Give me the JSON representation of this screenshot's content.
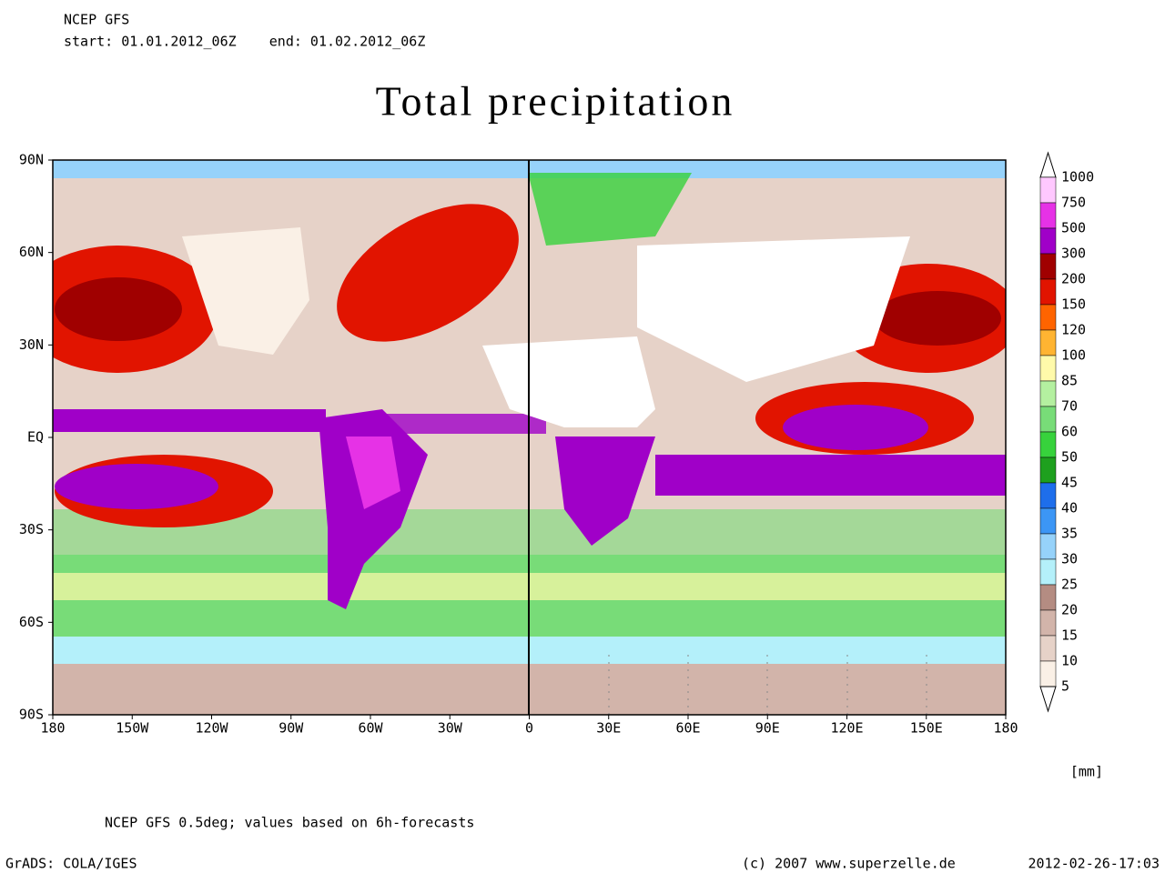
{
  "header": {
    "model": "NCEP GFS",
    "period": "start: 01.01.2012_06Z    end: 01.02.2012_06Z"
  },
  "title": "Total precipitation",
  "map": {
    "lat_labels": [
      "90N",
      "60N",
      "30N",
      "EQ",
      "30S",
      "60S",
      "90S"
    ],
    "lon_labels": [
      "180",
      "150W",
      "120W",
      "90W",
      "60W",
      "30W",
      "0",
      "30E",
      "60E",
      "90E",
      "120E",
      "150E",
      "180"
    ]
  },
  "colorbar": {
    "labels": [
      "1000",
      "750",
      "500",
      "300",
      "200",
      "150",
      "120",
      "100",
      "85",
      "70",
      "60",
      "50",
      "45",
      "40",
      "35",
      "30",
      "25",
      "20",
      "15",
      "10",
      "5"
    ],
    "colors": [
      "#ffc8ff",
      "#e632e6",
      "#a000c8",
      "#a00000",
      "#e11400",
      "#ff6400",
      "#ffb432",
      "#fffaaa",
      "#b4f0a0",
      "#78dc78",
      "#37d23c",
      "#1ea01e",
      "#1e6eeb",
      "#3c96f5",
      "#96d2fa",
      "#b4f0fa",
      "#b48c82",
      "#d2b4aa",
      "#e6d2c8",
      "#faf0e6"
    ],
    "unit": "[mm]"
  },
  "footer": {
    "note": "NCEP GFS 0.5deg; values based on 6h-forecasts",
    "software": "GrADS: COLA/IGES",
    "credit": "(c) 2007 www.superzelle.de",
    "timestamp": "2012-02-26-17:03"
  }
}
